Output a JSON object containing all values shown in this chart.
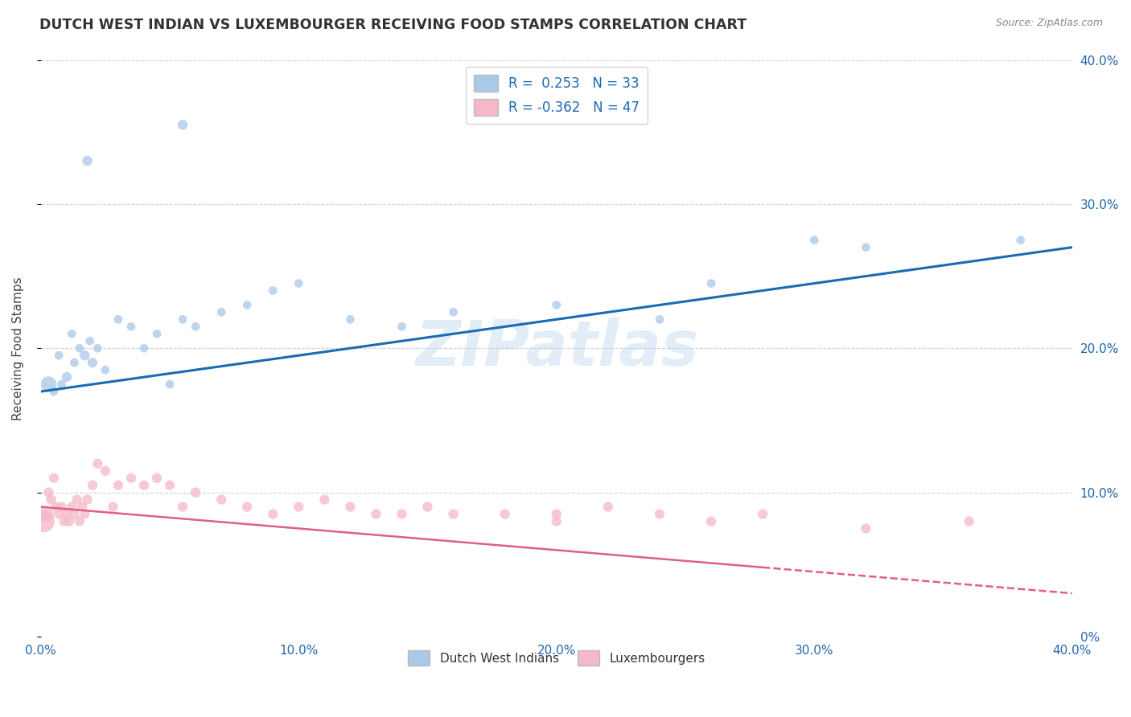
{
  "title": "DUTCH WEST INDIAN VS LUXEMBOURGER RECEIVING FOOD STAMPS CORRELATION CHART",
  "source": "Source: ZipAtlas.com",
  "ylabel": "Receiving Food Stamps",
  "watermark": "ZIPatlas",
  "blue_scatter_color": "#aac8e8",
  "pink_scatter_color": "#f4b8c8",
  "blue_line_color": "#1a6bb5",
  "pink_line_color": "#e06080",
  "blue_dots_x": [
    0.3,
    0.5,
    0.7,
    0.8,
    1.0,
    1.2,
    1.3,
    1.5,
    1.7,
    1.9,
    2.0,
    2.2,
    2.5,
    3.0,
    3.5,
    4.0,
    4.5,
    5.0,
    5.5,
    6.0,
    7.0,
    8.0,
    9.0,
    10.0,
    12.0,
    14.0,
    16.0,
    20.0,
    24.0,
    26.0,
    30.0,
    32.0,
    38.0
  ],
  "blue_dots_y": [
    17.5,
    17.0,
    19.5,
    17.5,
    18.0,
    21.0,
    19.0,
    20.0,
    19.5,
    20.5,
    19.0,
    20.0,
    18.5,
    22.0,
    21.5,
    20.0,
    21.0,
    17.5,
    22.0,
    21.5,
    22.5,
    23.0,
    24.0,
    24.5,
    22.0,
    21.5,
    22.5,
    23.0,
    22.0,
    24.5,
    27.5,
    27.0,
    27.5
  ],
  "blue_dots_size": [
    200,
    60,
    60,
    60,
    80,
    60,
    60,
    60,
    80,
    60,
    80,
    60,
    60,
    60,
    60,
    60,
    60,
    60,
    60,
    60,
    60,
    60,
    60,
    60,
    60,
    60,
    60,
    60,
    60,
    60,
    60,
    60,
    60
  ],
  "pink_dots_x": [
    0.1,
    0.2,
    0.3,
    0.4,
    0.5,
    0.6,
    0.7,
    0.8,
    0.9,
    1.0,
    1.1,
    1.2,
    1.3,
    1.4,
    1.5,
    1.6,
    1.7,
    1.8,
    2.0,
    2.2,
    2.5,
    2.8,
    3.0,
    3.5,
    4.0,
    4.5,
    5.0,
    5.5,
    6.0,
    7.0,
    8.0,
    9.0,
    10.0,
    11.0,
    12.0,
    13.0,
    14.0,
    15.0,
    16.0,
    18.0,
    20.0,
    22.0,
    24.0,
    26.0,
    28.0,
    32.0,
    36.0
  ],
  "pink_dots_y": [
    8.0,
    8.5,
    10.0,
    9.5,
    11.0,
    9.0,
    8.5,
    9.0,
    8.0,
    8.5,
    8.0,
    9.0,
    8.5,
    9.5,
    8.0,
    9.0,
    8.5,
    9.5,
    10.5,
    12.0,
    11.5,
    9.0,
    10.5,
    11.0,
    10.5,
    11.0,
    10.5,
    9.0,
    10.0,
    9.5,
    9.0,
    8.5,
    9.0,
    9.5,
    9.0,
    8.5,
    8.5,
    9.0,
    8.5,
    8.5,
    8.0,
    9.0,
    8.5,
    8.0,
    8.5,
    7.5,
    8.0
  ],
  "pink_dots_size": [
    400,
    200,
    80,
    80,
    80,
    80,
    80,
    80,
    80,
    80,
    80,
    80,
    80,
    80,
    80,
    80,
    80,
    80,
    80,
    80,
    80,
    80,
    80,
    80,
    80,
    80,
    80,
    80,
    80,
    80,
    80,
    80,
    80,
    80,
    80,
    80,
    80,
    80,
    80,
    80,
    80,
    80,
    80,
    80,
    80,
    80,
    80
  ],
  "blue_outlier1_x": 1.8,
  "blue_outlier1_y": 33.0,
  "blue_outlier2_x": 5.5,
  "blue_outlier2_y": 35.5,
  "pink_outlier1_x": 20.0,
  "pink_outlier1_y": 8.5,
  "xlim": [
    0,
    40
  ],
  "ylim": [
    0,
    40
  ],
  "xticks": [
    0,
    10,
    20,
    30,
    40
  ],
  "xtick_labels": [
    "0.0%",
    "10.0%",
    "20.0%",
    "30.0%",
    "40.0%"
  ],
  "ytick_vals": [
    0,
    10,
    20,
    30,
    40
  ],
  "ytick_labels_right": [
    "0%",
    "10.0%",
    "20.0%",
    "30.0%",
    "40.0%"
  ],
  "blue_trend_start_y": 17.0,
  "blue_trend_end_y": 27.0,
  "pink_trend_start_y": 9.0,
  "pink_trend_end_y": 3.0,
  "pink_dash_start_x": 28.0
}
